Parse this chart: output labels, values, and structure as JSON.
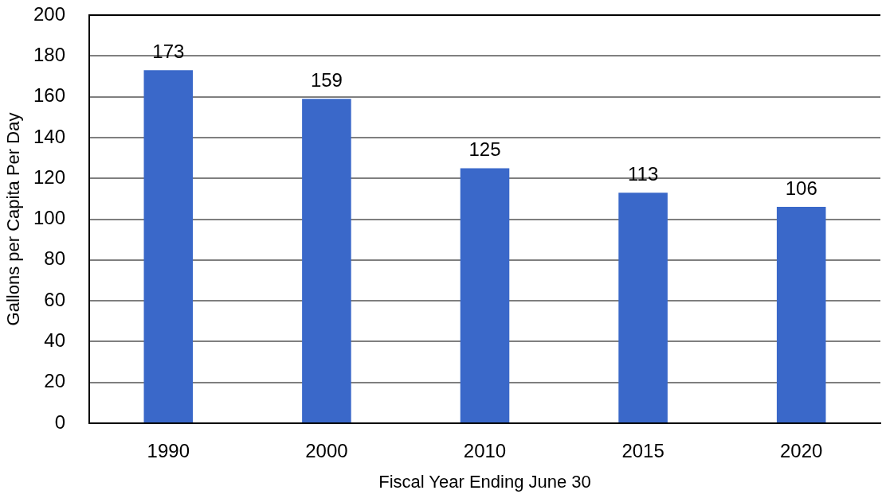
{
  "chart_data": {
    "type": "bar",
    "xlabel": "Fiscal Year Ending June 30",
    "ylabel": "Gallons per Capita Per Day",
    "categories": [
      "1990",
      "2000",
      "2010",
      "2015",
      "2020"
    ],
    "values": [
      173,
      159,
      125,
      113,
      106
    ],
    "color": "#3a68c9",
    "ylim": [
      0,
      200
    ],
    "yticks": [
      0,
      20,
      40,
      60,
      80,
      100,
      120,
      140,
      160,
      180,
      200
    ],
    "grid": "y",
    "data_labels": true
  }
}
